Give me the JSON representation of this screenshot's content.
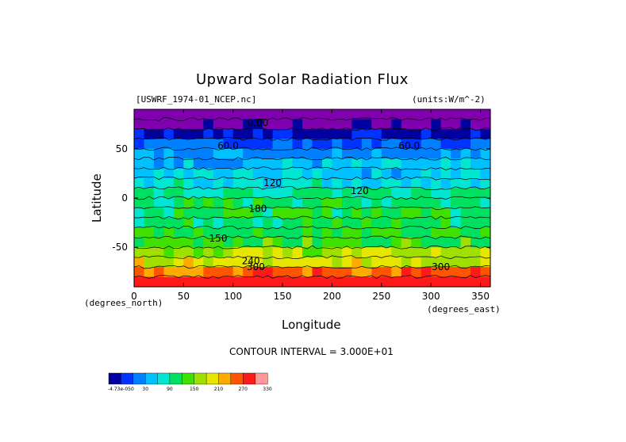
{
  "chart_data": {
    "type": "heatmap",
    "title": "Upward Solar Radiation Flux",
    "file_label": "[USWRF_1974-01_NCEP.nc]",
    "units_label": "(units:W/m^-2)",
    "xlabel": "Longitude",
    "ylabel": "Latitude",
    "x_unit_note": "(degrees_east)",
    "y_unit_note": "(degrees_north)",
    "xlim": [
      0,
      360
    ],
    "ylim": [
      -90,
      90
    ],
    "x_ticks": [
      "0",
      "50",
      "100",
      "150",
      "200",
      "250",
      "300",
      "350"
    ],
    "x_tick_values": [
      0,
      50,
      100,
      150,
      200,
      250,
      300,
      350
    ],
    "y_ticks": [
      "50",
      "0",
      "-50"
    ],
    "y_tick_values": [
      50,
      0,
      -50
    ],
    "contour_interval_text": "CONTOUR INTERVAL = 3.000E+01",
    "contour_labels": [
      {
        "text": "0.00",
        "lon": 125,
        "lat": 73
      },
      {
        "text": "60.0",
        "lon": 95,
        "lat": 50
      },
      {
        "text": "60.0",
        "lon": 278,
        "lat": 50
      },
      {
        "text": "120",
        "lon": 140,
        "lat": 12
      },
      {
        "text": "120",
        "lon": 228,
        "lat": 4
      },
      {
        "text": "180",
        "lon": 125,
        "lat": -14
      },
      {
        "text": "150",
        "lon": 85,
        "lat": -44
      },
      {
        "text": "240",
        "lon": 118,
        "lat": -67
      },
      {
        "text": "300",
        "lon": 123,
        "lat": -73
      },
      {
        "text": "300",
        "lon": 310,
        "lat": -73
      }
    ],
    "latitude_band_values": [
      {
        "lat": 85,
        "value": -5
      },
      {
        "lat": 75,
        "value": -5
      },
      {
        "lat": 65,
        "value": 30
      },
      {
        "lat": 55,
        "value": 60
      },
      {
        "lat": 45,
        "value": 90
      },
      {
        "lat": 35,
        "value": 100
      },
      {
        "lat": 25,
        "value": 115
      },
      {
        "lat": 15,
        "value": 130
      },
      {
        "lat": 5,
        "value": 150
      },
      {
        "lat": -5,
        "value": 165
      },
      {
        "lat": -15,
        "value": 175
      },
      {
        "lat": -25,
        "value": 170
      },
      {
        "lat": -35,
        "value": 180
      },
      {
        "lat": -45,
        "value": 190
      },
      {
        "lat": -55,
        "value": 230
      },
      {
        "lat": -65,
        "value": 250
      },
      {
        "lat": -75,
        "value": 315
      },
      {
        "lat": -85,
        "value": 340
      }
    ],
    "colorbar": {
      "colors": [
        "#0000a0",
        "#0033ff",
        "#0080ff",
        "#00c0ff",
        "#00e6d0",
        "#00e060",
        "#40e000",
        "#a0e000",
        "#e6e600",
        "#ffaa00",
        "#ff5500",
        "#ff1a1a",
        "#ff9999"
      ],
      "tick_labels": [
        "-4.73e-050",
        "30",
        "90",
        "150",
        "210",
        "270",
        "330"
      ]
    }
  }
}
